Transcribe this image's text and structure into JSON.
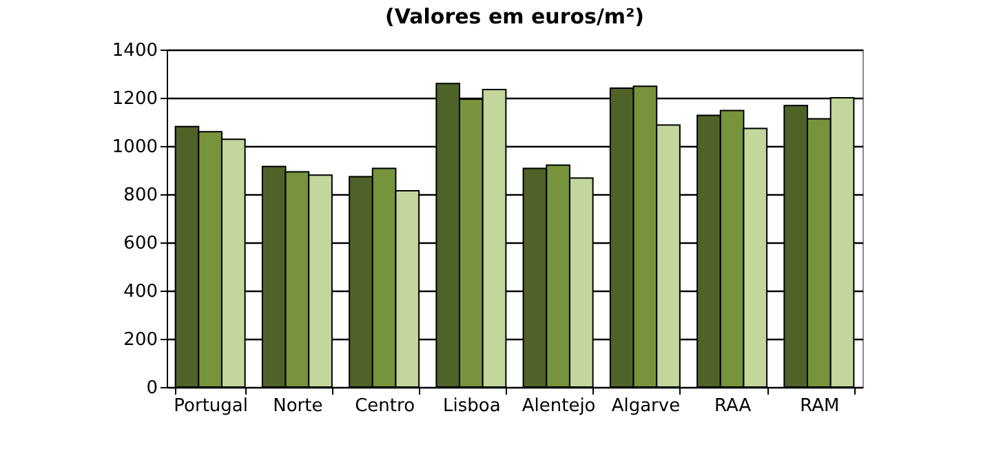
{
  "chart_data": {
    "type": "bar",
    "title": "(Valores em euros/m²)",
    "categories": [
      "Portugal",
      "Norte",
      "Centro",
      "Lisboa",
      "Alentejo",
      "Algarve",
      "RAA",
      "RAM"
    ],
    "series": [
      {
        "color": "#4f6228",
        "values": [
          1081,
          915,
          873,
          1259,
          907,
          1240,
          1127,
          1168
        ]
      },
      {
        "color": "#77933c",
        "values": [
          1059,
          893,
          907,
          1194,
          921,
          1248,
          1147,
          1113
        ]
      },
      {
        "color": "#c3d69b",
        "values": [
          1028,
          879,
          814,
          1234,
          867,
          1087,
          1073,
          1200
        ]
      }
    ],
    "ylim": [
      0,
      1400
    ],
    "yticks": [
      0,
      200,
      400,
      600,
      800,
      1000,
      1200,
      1400
    ],
    "grid": "y",
    "legend": false
  }
}
